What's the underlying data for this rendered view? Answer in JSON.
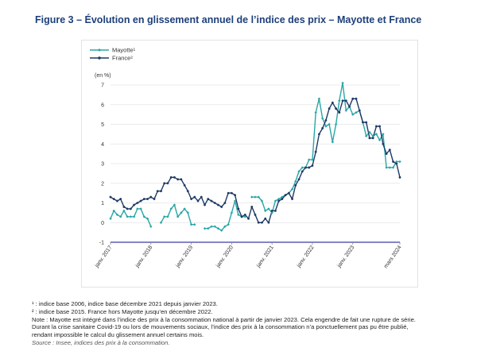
{
  "title": "Figure 3 – Évolution en glissement annuel de l’indice des prix – Mayotte et France",
  "notes": [
    "¹ : indice base 2006, indice base décembre 2021 depuis janvier 2023.",
    "² : indice base 2015. France hors Mayotte jusqu’en décembre 2022.",
    "Note : Mayotte est intégré dans l’indice des prix à la consommation national à partir de janvier 2023. Cela engendre de fait une rupture de série.",
    "Durant la crise sanitaire Covid-19 ou lors de mouvements sociaux, l’indice des prix à la consommation n’a ponctuellement pas pu être publié,",
    "rendant impossible le calcul du glissement annuel certains mois."
  ],
  "source": "Source : Insee, indices des prix à la consommation.",
  "colors": {
    "mayotte": "#2aa6a6",
    "france": "#1e3a66",
    "axis": "#3a3aa8",
    "text": "#333333"
  },
  "chart_data": {
    "type": "line",
    "ylabel": "(en %)",
    "ylim": [
      -1,
      7
    ],
    "yticks": [
      -1,
      0,
      1,
      2,
      3,
      4,
      5,
      6,
      7
    ],
    "x_unit": "month index from janv. 2017",
    "xlim": [
      0,
      86
    ],
    "xticks": [
      {
        "pos": 0,
        "label": "janv. 2017"
      },
      {
        "pos": 12,
        "label": "janv. 2018"
      },
      {
        "pos": 24,
        "label": "janv. 2019"
      },
      {
        "pos": 36,
        "label": "janv. 2020"
      },
      {
        "pos": 48,
        "label": "janv. 2021"
      },
      {
        "pos": 60,
        "label": "janv. 2022"
      },
      {
        "pos": 72,
        "label": "janv. 2023"
      },
      {
        "pos": 86,
        "label": "mars 2024"
      }
    ],
    "legend_position": "top-left",
    "series": [
      {
        "name": "Mayotte¹",
        "key": "mayotte",
        "values": [
          0.2,
          0.6,
          0.4,
          0.3,
          0.6,
          0.3,
          0.3,
          0.3,
          0.7,
          0.7,
          0.3,
          0.2,
          -0.2,
          null,
          null,
          0.0,
          0.3,
          0.3,
          0.7,
          0.9,
          0.3,
          0.5,
          0.7,
          0.5,
          -0.1,
          -0.1,
          null,
          null,
          -0.3,
          -0.3,
          -0.2,
          -0.2,
          -0.3,
          -0.4,
          -0.2,
          -0.1,
          0.5,
          1.1,
          0.4,
          0.3,
          0.3,
          null,
          1.3,
          1.3,
          1.3,
          1.1,
          0.6,
          0.7,
          0.5,
          1.1,
          1.2,
          1.3,
          1.4,
          1.5,
          1.7,
          2.1,
          2.6,
          2.8,
          2.8,
          3.2,
          3.2,
          5.6,
          6.3,
          5.3,
          4.9,
          5.0,
          4.1,
          5.0,
          6.2,
          7.1,
          5.7,
          5.9,
          5.5,
          5.6,
          5.7,
          5.1,
          4.4,
          4.6,
          4.4,
          4.5,
          4.2,
          4.5,
          2.8,
          2.8,
          2.8,
          3.1,
          3.1
        ]
      },
      {
        "name": "France²",
        "key": "france",
        "values": [
          1.3,
          1.2,
          1.1,
          1.2,
          0.8,
          0.7,
          0.7,
          0.9,
          1.0,
          1.1,
          1.2,
          1.2,
          1.3,
          1.2,
          1.6,
          1.6,
          2.0,
          2.0,
          2.3,
          2.3,
          2.2,
          2.2,
          1.9,
          1.6,
          1.2,
          1.3,
          1.1,
          1.3,
          0.9,
          1.2,
          1.1,
          1.0,
          0.9,
          0.8,
          1.0,
          1.5,
          1.5,
          1.4,
          0.7,
          0.3,
          0.4,
          0.2,
          0.8,
          0.4,
          0.0,
          0.0,
          0.2,
          0.0,
          0.6,
          0.6,
          1.1,
          1.2,
          1.4,
          1.5,
          1.2,
          1.9,
          2.2,
          2.6,
          2.8,
          2.8,
          2.9,
          3.6,
          4.5,
          4.8,
          5.2,
          5.8,
          6.1,
          5.8,
          5.6,
          6.2,
          6.2,
          5.9,
          6.3,
          6.3,
          5.7,
          5.1,
          5.1,
          4.3,
          4.3,
          4.9,
          4.9,
          4.0,
          3.5,
          3.7,
          3.1,
          3.0,
          2.3
        ]
      }
    ]
  }
}
